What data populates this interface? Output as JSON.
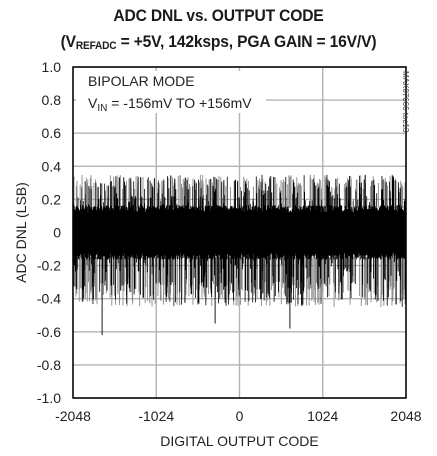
{
  "title_line1": "ADC DNL vs. OUTPUT CODE",
  "title_line2": {
    "open": "(V",
    "sub": "REFADC",
    "rest": " = +5V, 142ksps, PGA GAIN = 16V/V)"
  },
  "side_label": "MAX07666 toc13",
  "annotation": {
    "line1": "BIPOLAR MODE",
    "line2": {
      "v": "V",
      "sub": "IN",
      "rest": " = -156mV TO +156mV"
    }
  },
  "colors": {
    "trace": "#000000",
    "trace_highlight": "#8a8a8a",
    "grid": "#b3b3b3",
    "axes": "#000000"
  },
  "chart_data": {
    "type": "line",
    "xlabel": "DIGITAL OUTPUT CODE",
    "ylabel": "ADC DNL (LSB)",
    "xlim": [
      -2048,
      2048
    ],
    "ylim": [
      -1.0,
      1.0
    ],
    "x_ticks": [
      -2048,
      -1024,
      0,
      1024,
      2048
    ],
    "x_tick_labels": [
      "-2048",
      "-1024",
      "0",
      "1024",
      "2048"
    ],
    "y_ticks": [
      1.0,
      0.8,
      0.6,
      0.4,
      0.2,
      0,
      -0.2,
      -0.4,
      -0.6,
      -0.8,
      -1.0
    ],
    "y_tick_labels": [
      "1.0",
      "0.8",
      "0.6",
      "0.4",
      "0.2",
      "0",
      "-0.2",
      "-0.4",
      "-0.6",
      "-0.8",
      "-1.0"
    ],
    "grid": true,
    "series": [
      {
        "description_of_values": "DNL noise band across all codes",
        "x_range": [
          -2048,
          2048
        ],
        "dense_band": [
          -0.15,
          0.15
        ],
        "typical_peaks": [
          -0.45,
          0.35
        ],
        "extreme_peaks": [
          -0.62,
          0.34
        ]
      }
    ]
  }
}
